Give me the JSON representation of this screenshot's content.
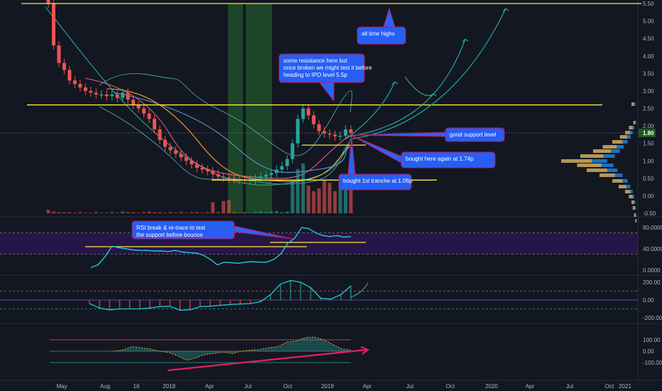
{
  "chart_data": {
    "type": "candlestick",
    "colors": {
      "up": "#26a69a",
      "down": "#ef5350",
      "level_line": "#ffeb3b",
      "background": "#131722",
      "annotation_box": "#2962ff",
      "annotation_border": "#c2185b",
      "arrow": "#26a69a",
      "rsi_line": "#26c6da",
      "rsi_band": "#4a148c",
      "divergence": "#e91e63",
      "ma_yellow": "#f9a825",
      "ma_blue": "#5b9bd5",
      "ma_red": "#f06292"
    },
    "time_axis": [
      "May",
      "Aug",
      "16",
      "2018",
      "Apr",
      "Jul",
      "Oct",
      "2019",
      "Apr",
      "Jul",
      "Oct",
      "2020",
      "Apr",
      "Jul",
      "Oct",
      "2021"
    ],
    "price_axis": {
      "ticks": [
        "5.50",
        "5.00",
        "4.50",
        "4.00",
        "3.50",
        "3.00",
        "2.50",
        "2.00",
        "1.50",
        "1.00",
        "0.50",
        "0.00",
        "-0.50"
      ],
      "ylim": [
        -0.5,
        5.5
      ],
      "last_price": "1.80"
    },
    "levels": [
      {
        "name": "all time highs",
        "value": 5.5
      },
      {
        "name": "resistance",
        "value": 2.6
      },
      {
        "name": "good support",
        "value": 1.45
      },
      {
        "name": "tranche level",
        "value": 0.45
      }
    ],
    "close": [
      5.5,
      4.3,
      3.8,
      3.6,
      3.3,
      3.2,
      3.1,
      3.0,
      2.95,
      2.9,
      2.9,
      2.85,
      2.9,
      2.8,
      2.95,
      2.75,
      2.6,
      2.5,
      2.35,
      2.2,
      1.9,
      1.6,
      1.4,
      1.3,
      1.2,
      1.1,
      1.0,
      0.9,
      0.8,
      0.75,
      0.7,
      0.62,
      0.55,
      0.52,
      0.5,
      0.48,
      0.46,
      0.45,
      0.46,
      0.5,
      0.55,
      0.6,
      0.65,
      0.75,
      0.85,
      1.05,
      1.5,
      2.2,
      2.5,
      2.3,
      2.05,
      1.85,
      1.78,
      1.75,
      1.7,
      1.72,
      1.9,
      1.8
    ],
    "volume": [
      6,
      3,
      2,
      2,
      2,
      1,
      2,
      1,
      1,
      2,
      1,
      1,
      2,
      1,
      3,
      2,
      2,
      1,
      2,
      3,
      2,
      2,
      1,
      2,
      1,
      2,
      1,
      2,
      2,
      1,
      2,
      20,
      2,
      22,
      24,
      2,
      1,
      2,
      1,
      2,
      3,
      2,
      3,
      4,
      2,
      3,
      60,
      80,
      90,
      50,
      40,
      45,
      60,
      55,
      40,
      50,
      70,
      60
    ],
    "bubbles": {
      "ath": "all time highs",
      "resistance": "some resistance here but once broken we might test it before heading to IPO level 5.5p",
      "support": "good support level",
      "bought2": "bought here again at 1.74p",
      "bought1": "bought 1st tranche at 1.06p",
      "rsi": "RSI break & re-trace to test the support before bounce"
    },
    "rsi": {
      "ticks": [
        "80.0000",
        "40.0000",
        "0.0000"
      ],
      "ylim": [
        0,
        100
      ],
      "values": [
        5,
        10,
        25,
        45,
        42,
        40,
        38,
        37,
        37,
        36,
        36,
        35,
        37,
        34,
        33,
        32,
        28,
        20,
        10,
        15,
        14,
        13,
        15,
        16,
        15,
        15,
        20,
        30,
        50,
        60,
        80,
        78,
        70,
        65,
        63,
        65,
        62,
        63
      ]
    },
    "cci": {
      "ticks": [
        "200.00",
        "0.00",
        "-200.00"
      ],
      "ylim": [
        -300,
        300
      ],
      "values": [
        -40,
        -90,
        -110,
        -100,
        -100,
        -100,
        -90,
        -75,
        -70,
        -115,
        -110,
        -75,
        -70,
        -60,
        -50,
        -45,
        -40,
        -20,
        60,
        180,
        220,
        200,
        140,
        20,
        10,
        60,
        160
      ]
    },
    "osc": {
      "ticks": [
        "100.00",
        "0.00",
        "-100.00"
      ],
      "ylim": [
        -130,
        150
      ],
      "values": [
        0,
        10,
        40,
        30,
        20,
        0,
        -10,
        -40,
        -80,
        -60,
        -30,
        -20,
        -10,
        -20,
        0,
        10,
        15,
        30,
        40,
        80,
        90,
        120,
        125,
        100,
        60,
        20,
        10
      ]
    }
  }
}
